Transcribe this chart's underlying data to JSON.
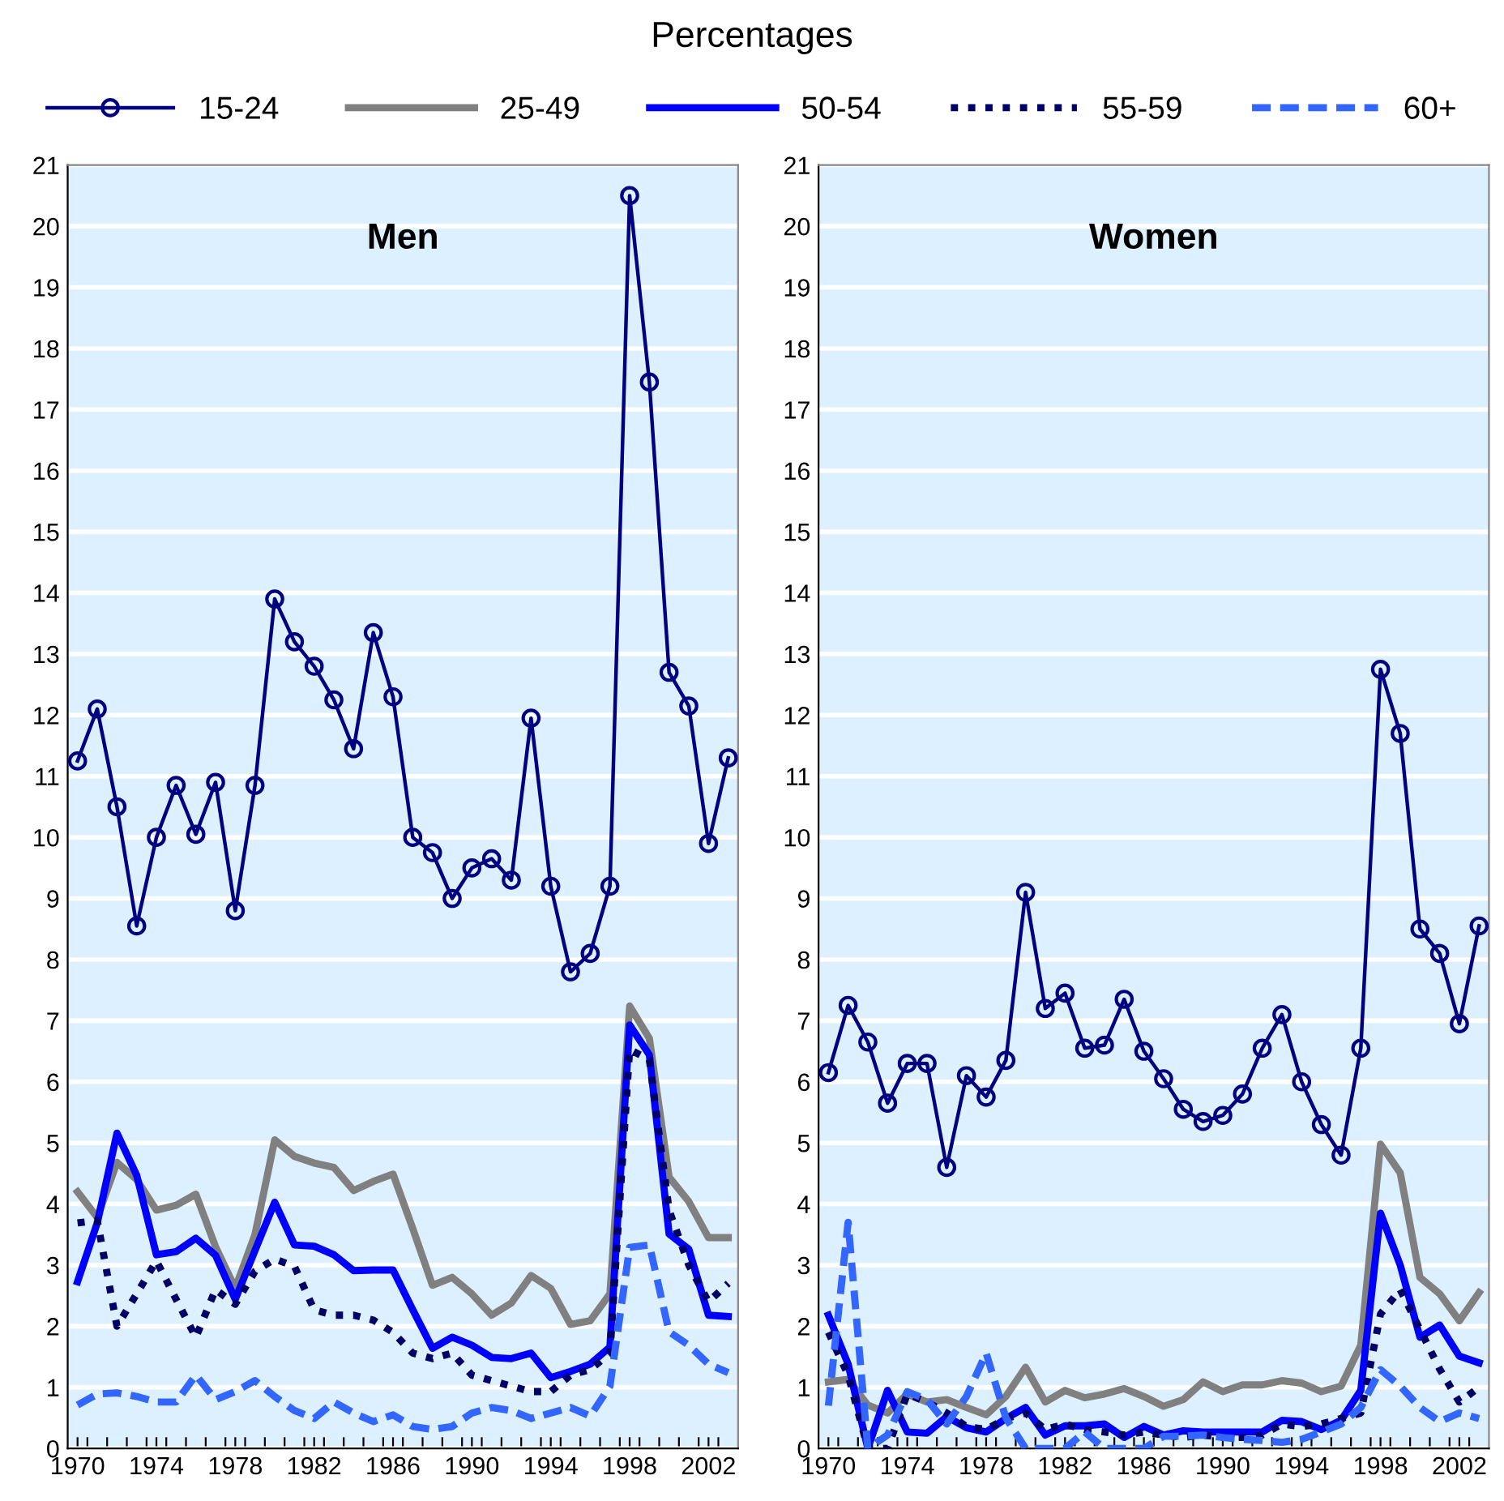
{
  "chart_data": [
    {
      "type": "line",
      "title": "Men",
      "ylabel": "Percentages",
      "legend": "top",
      "grid": "y",
      "x": [
        1970,
        1971,
        1972,
        1973,
        1974,
        1975,
        1976,
        1977,
        1978,
        1979,
        1980,
        1981,
        1982,
        1983,
        1984,
        1985,
        1986,
        1987,
        1988,
        1989,
        1990,
        1991,
        1992,
        1993,
        1994,
        1995,
        1996,
        1997,
        1998,
        1999,
        2000,
        2001,
        2002,
        2003
      ],
      "xlim": [
        1969.5,
        2003.5
      ],
      "xticks": [
        1970,
        1974,
        1978,
        1982,
        1986,
        1990,
        1994,
        1998,
        2002,
        {
          "value": 1970.5,
          "label": null
        },
        {
          "value": 1971.5,
          "label": null
        },
        {
          "value": 1972.5,
          "label": null
        },
        {
          "value": 1973.5,
          "label": null
        },
        {
          "value": 1974.5,
          "label": null
        },
        {
          "value": 1975.5,
          "label": null
        },
        {
          "value": 1976.5,
          "label": null
        },
        {
          "value": 1977.5,
          "label": null
        },
        {
          "value": 1978.5,
          "label": null
        },
        {
          "value": 1979.5,
          "label": null
        },
        {
          "value": 1980.5,
          "label": null
        },
        {
          "value": 1981.5,
          "label": null
        },
        {
          "value": 1982.5,
          "label": null
        },
        {
          "value": 1983.5,
          "label": null
        },
        {
          "value": 1984.5,
          "label": null
        },
        {
          "value": 1985.5,
          "label": null
        },
        {
          "value": 1986.5,
          "label": null
        },
        {
          "value": 1987.5,
          "label": null
        },
        {
          "value": 1988.5,
          "label": null
        },
        {
          "value": 1989.5,
          "label": null
        },
        {
          "value": 1990.5,
          "label": null
        },
        {
          "value": 1991.5,
          "label": null
        },
        {
          "value": 1992.5,
          "label": null
        },
        {
          "value": 1993.5,
          "label": null
        },
        {
          "value": 1994.5,
          "label": null
        },
        {
          "value": 1995.5,
          "label": null
        },
        {
          "value": 1996.5,
          "label": null
        },
        {
          "value": 1997.5,
          "label": null
        },
        {
          "value": 1998.5,
          "label": null
        },
        {
          "value": 1999.5,
          "label": null
        },
        {
          "value": 2000.5,
          "label": null
        },
        {
          "value": 2001.5,
          "label": null
        },
        {
          "value": 2002.5,
          "label": null
        }
      ],
      "ylim": [
        0,
        21
      ],
      "yticks": [
        0,
        1,
        2,
        3,
        4,
        5,
        6,
        7,
        8,
        9,
        10,
        11,
        12,
        13,
        14,
        15,
        16,
        17,
        18,
        19,
        20,
        21
      ],
      "series": [
        {
          "name": "15-24",
          "color": "#000080",
          "marker": "circle",
          "line_style": "solid",
          "values": [
            11.25,
            12.1,
            10.5,
            8.55,
            10.0,
            10.85,
            10.05,
            10.9,
            8.8,
            10.85,
            13.9,
            13.2,
            12.8,
            12.25,
            11.45,
            13.35,
            12.3,
            10.0,
            9.75,
            9.0,
            9.5,
            9.65,
            9.3,
            11.95,
            9.2,
            7.8,
            8.1,
            9.2,
            20.5,
            17.45,
            12.7,
            12.15,
            9.9,
            11.3
          ]
        },
        {
          "name": "25-49",
          "color": "#808080",
          "line_style": "solid",
          "values": [
            4.2,
            3.78,
            4.68,
            4.4,
            3.9,
            3.98,
            4.16,
            3.3,
            2.62,
            3.5,
            5.05,
            4.78,
            4.67,
            4.6,
            4.22,
            4.37,
            4.49,
            3.6,
            2.67,
            2.8,
            2.53,
            2.18,
            2.38,
            2.83,
            2.62,
            2.03,
            2.09,
            2.53,
            7.24,
            6.71,
            4.44,
            4.04,
            3.45,
            3.45
          ]
        },
        {
          "name": "50-54",
          "color": "#0000ff",
          "line_style": "solid",
          "values": [
            2.73,
            3.69,
            5.16,
            4.47,
            3.17,
            3.22,
            3.44,
            3.16,
            2.44,
            3.24,
            4.03,
            3.33,
            3.31,
            3.17,
            2.91,
            2.92,
            2.92,
            2.27,
            1.64,
            1.82,
            1.69,
            1.49,
            1.47,
            1.56,
            1.16,
            1.26,
            1.38,
            1.66,
            6.93,
            6.44,
            3.51,
            3.26,
            2.18,
            2.16
          ]
        },
        {
          "name": "55-59",
          "color": "#000066",
          "line_style": "dotted",
          "values": [
            3.69,
            3.73,
            2.0,
            2.53,
            3.07,
            2.44,
            1.82,
            2.6,
            2.36,
            2.9,
            3.1,
            2.98,
            2.27,
            2.18,
            2.18,
            2.1,
            1.9,
            1.56,
            1.47,
            1.56,
            1.2,
            1.11,
            1.02,
            0.93,
            0.93,
            1.2,
            1.29,
            1.56,
            6.53,
            6.36,
            3.9,
            3.0,
            2.4,
            2.7
          ]
        },
        {
          "name": "60+",
          "color": "#3366ff",
          "line_style": "dashed",
          "values": [
            0.71,
            0.89,
            0.91,
            0.85,
            0.76,
            0.76,
            1.2,
            0.8,
            0.93,
            1.11,
            0.85,
            0.62,
            0.49,
            0.76,
            0.58,
            0.44,
            0.55,
            0.36,
            0.31,
            0.36,
            0.58,
            0.67,
            0.62,
            0.49,
            0.58,
            0.67,
            0.53,
            1.02,
            3.29,
            3.33,
            1.91,
            1.69,
            1.38,
            1.24
          ]
        }
      ]
    },
    {
      "type": "line",
      "title": "Women",
      "grid": "y",
      "x": [
        1970,
        1971,
        1972,
        1973,
        1974,
        1975,
        1976,
        1977,
        1978,
        1979,
        1980,
        1981,
        1982,
        1983,
        1984,
        1985,
        1986,
        1987,
        1988,
        1989,
        1990,
        1991,
        1992,
        1993,
        1994,
        1995,
        1996,
        1997,
        1998,
        1999,
        2000,
        2001,
        2002,
        2003
      ],
      "xlim": [
        1969.5,
        2003.5
      ],
      "xticks": [
        1970,
        1974,
        1978,
        1982,
        1986,
        1990,
        1994,
        1998,
        2002,
        {
          "value": 1970.5,
          "label": null
        },
        {
          "value": 1971.5,
          "label": null
        },
        {
          "value": 1972.5,
          "label": null
        },
        {
          "value": 1973.5,
          "label": null
        },
        {
          "value": 1974.5,
          "label": null
        },
        {
          "value": 1975.5,
          "label": null
        },
        {
          "value": 1976.5,
          "label": null
        },
        {
          "value": 1977.5,
          "label": null
        },
        {
          "value": 1978.5,
          "label": null
        },
        {
          "value": 1979.5,
          "label": null
        },
        {
          "value": 1980.5,
          "label": null
        },
        {
          "value": 1981.5,
          "label": null
        },
        {
          "value": 1982.5,
          "label": null
        },
        {
          "value": 1983.5,
          "label": null
        },
        {
          "value": 1984.5,
          "label": null
        },
        {
          "value": 1985.5,
          "label": null
        },
        {
          "value": 1986.5,
          "label": null
        },
        {
          "value": 1987.5,
          "label": null
        },
        {
          "value": 1988.5,
          "label": null
        },
        {
          "value": 1989.5,
          "label": null
        },
        {
          "value": 1990.5,
          "label": null
        },
        {
          "value": 1991.5,
          "label": null
        },
        {
          "value": 1992.5,
          "label": null
        },
        {
          "value": 1993.5,
          "label": null
        },
        {
          "value": 1994.5,
          "label": null
        },
        {
          "value": 1995.5,
          "label": null
        },
        {
          "value": 1996.5,
          "label": null
        },
        {
          "value": 1997.5,
          "label": null
        },
        {
          "value": 1998.5,
          "label": null
        },
        {
          "value": 1999.5,
          "label": null
        },
        {
          "value": 2000.5,
          "label": null
        },
        {
          "value": 2001.5,
          "label": null
        },
        {
          "value": 2002.5,
          "label": null
        }
      ],
      "ylim": [
        0,
        21
      ],
      "yticks": [
        0,
        1,
        2,
        3,
        4,
        5,
        6,
        7,
        8,
        9,
        10,
        11,
        12,
        13,
        14,
        15,
        16,
        17,
        18,
        19,
        20,
        21
      ],
      "series": [
        {
          "color": "#000080",
          "marker": "circle",
          "line_style": "solid",
          "values": [
            6.15,
            7.25,
            6.65,
            5.65,
            6.3,
            6.3,
            4.6,
            6.1,
            5.75,
            6.35,
            9.1,
            7.2,
            7.45,
            6.55,
            6.6,
            7.35,
            6.5,
            6.05,
            5.55,
            5.35,
            5.45,
            5.8,
            6.55,
            7.1,
            6.0,
            5.3,
            4.8,
            6.55,
            12.75,
            11.7,
            8.5,
            8.1,
            6.95,
            8.55
          ]
        },
        {
          "color": "#808080",
          "line_style": "solid",
          "values": [
            1.09,
            1.13,
            0.71,
            0.58,
            0.89,
            0.76,
            0.8,
            0.67,
            0.55,
            0.85,
            1.33,
            0.76,
            0.95,
            0.83,
            0.89,
            0.98,
            0.85,
            0.69,
            0.8,
            1.09,
            0.93,
            1.04,
            1.04,
            1.11,
            1.07,
            0.93,
            1.02,
            1.69,
            4.98,
            4.51,
            2.8,
            2.53,
            2.09,
            2.55
          ]
        },
        {
          "color": "#0000ff",
          "line_style": "solid",
          "values": [
            2.18,
            1.38,
            0.0,
            0.95,
            0.27,
            0.25,
            0.52,
            0.34,
            0.27,
            0.49,
            0.67,
            0.22,
            0.37,
            0.37,
            0.4,
            0.18,
            0.36,
            0.22,
            0.29,
            0.27,
            0.27,
            0.27,
            0.27,
            0.46,
            0.44,
            0.31,
            0.46,
            0.95,
            3.85,
            3.0,
            1.82,
            2.02,
            1.51,
            1.4
          ]
        },
        {
          "color": "#000066",
          "line_style": "dotted",
          "values": [
            1.9,
            1.2,
            0.0,
            0.0,
            0.89,
            0.76,
            0.58,
            0.36,
            0.31,
            0.49,
            0.58,
            0.31,
            0.4,
            0.31,
            0.27,
            0.22,
            0.27,
            0.22,
            0.18,
            0.22,
            0.18,
            0.18,
            0.22,
            0.4,
            0.36,
            0.4,
            0.49,
            0.58,
            2.2,
            2.6,
            1.95,
            1.3,
            0.76,
            1.0
          ]
        },
        {
          "color": "#3366ff",
          "line_style": "dashed",
          "values": [
            0.7,
            3.7,
            0.0,
            0.22,
            0.93,
            0.8,
            0.4,
            0.85,
            1.56,
            0.5,
            0.0,
            0.0,
            0.0,
            0.27,
            0.0,
            0.0,
            0.0,
            0.2,
            0.2,
            0.22,
            0.18,
            0.15,
            0.13,
            0.1,
            0.15,
            0.27,
            0.4,
            0.67,
            1.29,
            1.02,
            0.67,
            0.44,
            0.58,
            0.49
          ]
        }
      ]
    }
  ]
}
